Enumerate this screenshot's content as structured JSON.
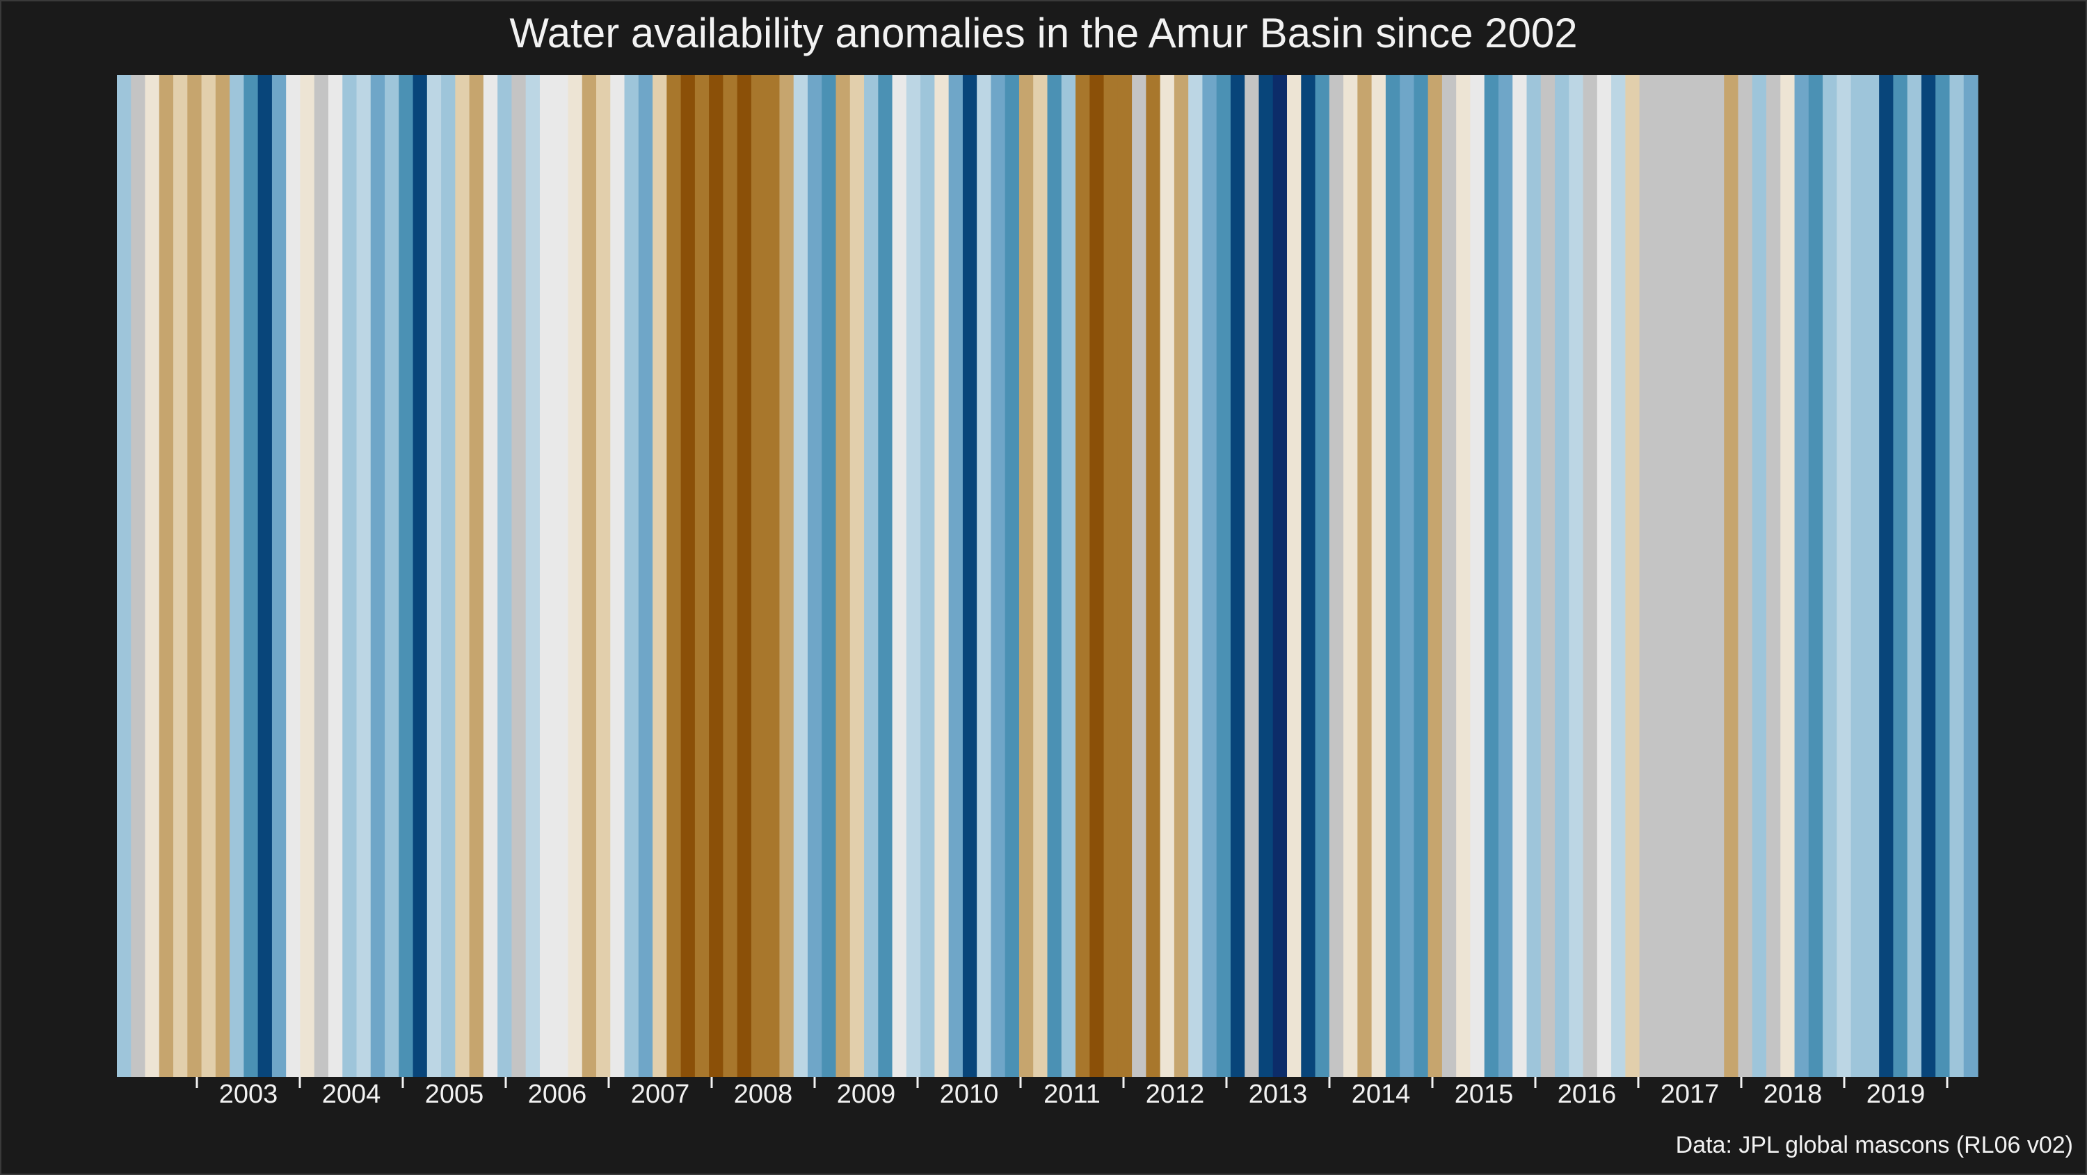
{
  "chart_data": {
    "type": "heatmap",
    "title": "Water availability anomalies in the Amur Basin since 2002",
    "caption": "Data: JPL global mascons (RL06 v02)",
    "xlabel": "",
    "ylabel": "",
    "x_tick_labels": [
      "2003",
      "2004",
      "2005",
      "2006",
      "2007",
      "2008",
      "2009",
      "2010",
      "2011",
      "2012",
      "2013",
      "2014",
      "2015",
      "2016",
      "2017",
      "2018",
      "2019"
    ],
    "stripe_colors": [
      "#9ec5da",
      "#c4c4c4",
      "#ede4d4",
      "#c6a56e",
      "#e2cfac",
      "#c6a56e",
      "#e2cfac",
      "#c6a56e",
      "#9ec5da",
      "#4b91b4",
      "#08457a",
      "#6fa6c8",
      "#e9e9e9",
      "#ede4d4",
      "#c4c4c4",
      "#e9e9e9",
      "#9ec5da",
      "#bcd6e4",
      "#6fa6c8",
      "#9ec5da",
      "#4b91b4",
      "#08457a",
      "#bcd6e4",
      "#9ec5da",
      "#e2cfac",
      "#c6a56e",
      "#e9e9e9",
      "#9ec5da",
      "#c4c4c4",
      "#bcd6e4",
      "#e9e9e9",
      "#e9e9e9",
      "#ede4d4",
      "#c6a56e",
      "#e2cfac",
      "#e9e9e9",
      "#9ec5da",
      "#6fa6c8",
      "#e2cfac",
      "#a8772c",
      "#8b5008",
      "#a8772c",
      "#8b5008",
      "#a8772c",
      "#8b5008",
      "#a8772c",
      "#a8772c",
      "#c6a56e",
      "#bcd6e4",
      "#6fa6c8",
      "#4b91b4",
      "#c6a56e",
      "#e2cfac",
      "#9ec5da",
      "#4b91b4",
      "#e9e9e9",
      "#bcd6e4",
      "#9ec5da",
      "#ede4d4",
      "#6fa6c8",
      "#08457a",
      "#bcd6e4",
      "#6fa6c8",
      "#4b91b4",
      "#c6a56e",
      "#e2cfac",
      "#4b91b4",
      "#9ec5da",
      "#a8772c",
      "#8b5008",
      "#a8772c",
      "#a8772c",
      "#c4c4c4",
      "#a8772c",
      "#ede4d4",
      "#c6a56e",
      "#bcd6e4",
      "#6fa6c8",
      "#4b91b4",
      "#08457a",
      "#c4c4c4",
      "#08457a",
      "#0c2c69",
      "#ede4d4",
      "#08457a",
      "#4b91b4",
      "#c4c4c4",
      "#ede4d4",
      "#c6a56e",
      "#ede4d4",
      "#4b91b4",
      "#6fa6c8",
      "#4b91b4",
      "#c6a56e",
      "#c4c4c4",
      "#ede4d4",
      "#e9e9e9",
      "#4b91b4",
      "#6fa6c8",
      "#e9e9e9",
      "#9ec5da",
      "#c4c4c4",
      "#9ec5da",
      "#bcd6e4",
      "#c4c4c4",
      "#e9e9e9",
      "#bcd6e4",
      "#e2cfac",
      "#c4c4c4",
      "#c4c4c4",
      "#c4c4c4",
      "#c4c4c4",
      "#c4c4c4",
      "#c4c4c4",
      "#c6a56e",
      "#c4c4c4",
      "#9ec5da",
      "#c4c4c4",
      "#ede4d4",
      "#6fa6c8",
      "#4b91b4",
      "#9ec5da",
      "#bcd6e4",
      "#9ec5da",
      "#9ec5da",
      "#08457a",
      "#4b91b4",
      "#9ec5da",
      "#08457a",
      "#4b91b4",
      "#9ec5da",
      "#6fa6c8"
    ]
  }
}
